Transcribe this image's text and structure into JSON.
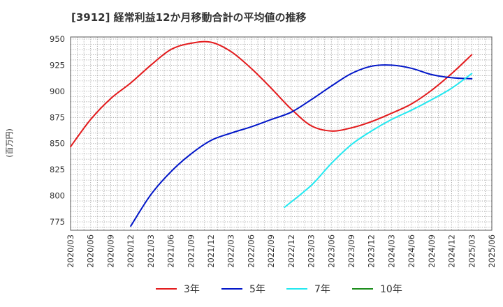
{
  "title": "[3912]  経常利益12か月移動合計の平均値の推移",
  "chart_data": {
    "type": "line",
    "title": "[3912]  経常利益12か月移動合計の平均値の推移",
    "ylabel": "(百万円)",
    "xlabel": "",
    "ylim": [
      767,
      952
    ],
    "yticks": [
      775,
      800,
      825,
      850,
      875,
      900,
      925,
      950
    ],
    "x_categories": [
      "2020/03",
      "2020/06",
      "2020/09",
      "2020/12",
      "2021/03",
      "2021/06",
      "2021/09",
      "2021/12",
      "2022/03",
      "2022/06",
      "2022/09",
      "2022/12",
      "2023/03",
      "2023/06",
      "2023/09",
      "2023/12",
      "2024/03",
      "2024/06",
      "2024/09",
      "2024/12",
      "2025/03",
      "2025/06"
    ],
    "grid": true,
    "series": [
      {
        "name": "3年",
        "color": "#e31a1c",
        "x": [
          "2020/03",
          "2020/06",
          "2020/09",
          "2020/12",
          "2021/03",
          "2021/06",
          "2021/09",
          "2021/12",
          "2022/03",
          "2022/06",
          "2022/09",
          "2022/12",
          "2023/03",
          "2023/06",
          "2023/09",
          "2023/12",
          "2024/03",
          "2024/06",
          "2024/09",
          "2024/12",
          "2025/03"
        ],
        "values": [
          847,
          873,
          893,
          908,
          925,
          940,
          946,
          947,
          938,
          922,
          903,
          883,
          867,
          862,
          865,
          871,
          879,
          888,
          901,
          917,
          935
        ]
      },
      {
        "name": "5年",
        "color": "#0015c8",
        "x": [
          "2020/12",
          "2021/03",
          "2021/06",
          "2021/09",
          "2021/12",
          "2022/03",
          "2022/06",
          "2022/09",
          "2022/12",
          "2023/03",
          "2023/06",
          "2023/09",
          "2023/12",
          "2024/03",
          "2024/06",
          "2024/09",
          "2024/12",
          "2025/03"
        ],
        "values": [
          771,
          801,
          823,
          840,
          853,
          860,
          866,
          873,
          880,
          892,
          905,
          917,
          924,
          925,
          922,
          916,
          913,
          912
        ]
      },
      {
        "name": "7年",
        "color": "#22e8f0",
        "x": [
          "2022/11",
          "2023/03",
          "2023/06",
          "2023/09",
          "2023/12",
          "2024/03",
          "2024/06",
          "2024/09",
          "2024/12",
          "2025/03"
        ],
        "values": [
          789,
          810,
          831,
          849,
          862,
          873,
          882,
          892,
          903,
          917
        ]
      },
      {
        "name": "10年",
        "color": "#1a8c1a",
        "x": [],
        "values": []
      }
    ]
  }
}
